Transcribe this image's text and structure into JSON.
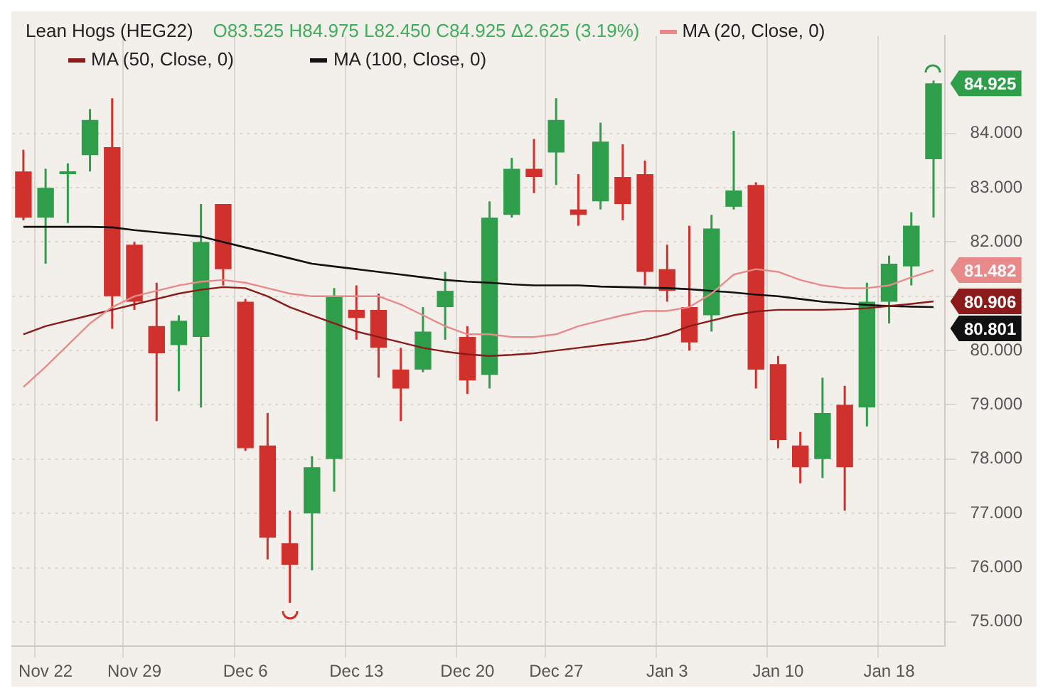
{
  "chart_data": {
    "type": "candlestick",
    "title": "Lean Hogs (HEG22)",
    "subtitle": "O83.525 H84.975 L82.450 C84.925 Δ2.625 (3.19%)",
    "categories": [
      null,
      "Nov 22",
      null,
      null,
      null,
      "Nov 29",
      null,
      null,
      null,
      null,
      "Dec 6",
      null,
      null,
      null,
      null,
      "Dec 13",
      null,
      null,
      null,
      null,
      "Dec 20",
      null,
      null,
      null,
      "Dec 27",
      null,
      null,
      null,
      null,
      "Jan 3",
      null,
      null,
      null,
      null,
      "Jan 10",
      null,
      null,
      null,
      null,
      "Jan 18",
      null,
      null
    ],
    "ohlc": [
      [
        83.3,
        83.7,
        82.4,
        82.45
      ],
      [
        82.45,
        83.35,
        81.6,
        83.0
      ],
      [
        83.25,
        83.45,
        82.35,
        83.3
      ],
      [
        83.6,
        84.45,
        83.3,
        84.25
      ],
      [
        83.75,
        84.65,
        80.4,
        81.0
      ],
      [
        81.95,
        82.0,
        80.75,
        80.9
      ],
      [
        80.45,
        81.25,
        78.7,
        79.95
      ],
      [
        80.1,
        80.65,
        79.25,
        80.55
      ],
      [
        80.25,
        82.7,
        78.95,
        82.0
      ],
      [
        82.7,
        82.7,
        81.2,
        81.5
      ],
      [
        80.9,
        80.95,
        78.15,
        78.2
      ],
      [
        78.25,
        78.85,
        76.15,
        76.55
      ],
      [
        76.45,
        77.05,
        75.35,
        76.05
      ],
      [
        77.0,
        78.05,
        75.95,
        77.85
      ],
      [
        78.0,
        81.15,
        77.4,
        81.0
      ],
      [
        80.75,
        81.2,
        80.2,
        80.6
      ],
      [
        80.75,
        81.05,
        79.5,
        80.05
      ],
      [
        79.65,
        80.05,
        78.7,
        79.3
      ],
      [
        79.65,
        80.8,
        79.6,
        80.35
      ],
      [
        80.8,
        81.45,
        80.2,
        81.1
      ],
      [
        80.25,
        80.45,
        79.2,
        79.45
      ],
      [
        79.55,
        82.75,
        79.3,
        82.45
      ],
      [
        82.5,
        83.55,
        82.45,
        83.35
      ],
      [
        83.35,
        83.9,
        82.9,
        83.2
      ],
      [
        83.65,
        84.65,
        83.05,
        84.25
      ],
      [
        82.6,
        83.25,
        82.3,
        82.5
      ],
      [
        82.75,
        84.2,
        82.6,
        83.85
      ],
      [
        83.2,
        83.8,
        82.4,
        82.7
      ],
      [
        83.25,
        83.5,
        81.2,
        81.45
      ],
      [
        81.5,
        81.95,
        80.9,
        81.1
      ],
      [
        80.8,
        82.3,
        80.0,
        80.15
      ],
      [
        80.65,
        82.5,
        80.35,
        82.25
      ],
      [
        82.65,
        84.05,
        82.6,
        82.95
      ],
      [
        83.05,
        83.1,
        79.3,
        79.65
      ],
      [
        79.75,
        79.9,
        78.2,
        78.35
      ],
      [
        78.25,
        78.5,
        77.55,
        77.85
      ],
      [
        78.0,
        79.5,
        77.65,
        78.85
      ],
      [
        79.0,
        79.35,
        77.05,
        77.85
      ],
      [
        78.95,
        81.25,
        78.6,
        80.9
      ],
      [
        80.9,
        81.75,
        80.5,
        81.6
      ],
      [
        81.55,
        82.55,
        81.2,
        82.3
      ],
      [
        83.525,
        84.975,
        82.45,
        84.925
      ]
    ],
    "colors": [
      "#d0312d",
      "#2e9e4a",
      "#2e9e4a",
      "#2e9e4a",
      "#d0312d",
      "#d0312d",
      "#d0312d",
      "#2e9e4a",
      "#2e9e4a",
      "#d0312d",
      "#d0312d",
      "#d0312d",
      "#d0312d",
      "#2e9e4a",
      "#2e9e4a",
      "#d0312d",
      "#d0312d",
      "#d0312d",
      "#2e9e4a",
      "#2e9e4a",
      "#d0312d",
      "#2e9e4a",
      "#2e9e4a",
      "#d0312d",
      "#2e9e4a",
      "#d0312d",
      "#2e9e4a",
      "#d0312d",
      "#d0312d",
      "#d0312d",
      "#d0312d",
      "#2e9e4a",
      "#2e9e4a",
      "#d0312d",
      "#d0312d",
      "#d0312d",
      "#2e9e4a",
      "#d0312d",
      "#2e9e4a",
      "#2e9e4a",
      "#2e9e4a",
      "#2e9e4a"
    ],
    "series": [
      {
        "type": "line",
        "name": "MA (20, Close, 0)",
        "color": "#e88a8a",
        "values": [
          79.33,
          79.7,
          80.1,
          80.5,
          80.8,
          81.0,
          81.1,
          81.2,
          81.27,
          81.3,
          81.25,
          81.15,
          81.05,
          81.0,
          81.0,
          81.0,
          81.0,
          80.85,
          80.65,
          80.45,
          80.3,
          80.3,
          80.25,
          80.25,
          80.3,
          80.45,
          80.55,
          80.65,
          80.73,
          80.73,
          80.8,
          81.05,
          81.4,
          81.5,
          81.45,
          81.3,
          81.2,
          81.15,
          81.15,
          81.2,
          81.35,
          81.482
        ],
        "value_labels": [
          null,
          null,
          null,
          null,
          null,
          null,
          null,
          null,
          null,
          null,
          null,
          null,
          null,
          null,
          null,
          null,
          null,
          null,
          null,
          null,
          null,
          null,
          null,
          null,
          null,
          null,
          null,
          null,
          null,
          null,
          null,
          null,
          null,
          null,
          null,
          null,
          null,
          null,
          null,
          null,
          null,
          "81.482"
        ]
      },
      {
        "type": "line",
        "name": "MA (50, Close, 0)",
        "color": "#8b1a1a",
        "values": [
          80.3,
          80.45,
          80.55,
          80.65,
          80.75,
          80.85,
          80.95,
          81.05,
          81.12,
          81.17,
          81.15,
          81.0,
          80.8,
          80.65,
          80.5,
          80.35,
          80.25,
          80.15,
          80.05,
          79.98,
          79.93,
          79.9,
          79.92,
          79.95,
          80.0,
          80.05,
          80.1,
          80.15,
          80.2,
          80.3,
          80.45,
          80.55,
          80.65,
          80.72,
          80.75,
          80.75,
          80.75,
          80.76,
          80.78,
          80.82,
          80.86,
          80.906
        ],
        "value_labels": [
          null,
          null,
          null,
          null,
          null,
          null,
          null,
          null,
          null,
          null,
          null,
          null,
          null,
          null,
          null,
          null,
          null,
          null,
          null,
          null,
          null,
          null,
          null,
          null,
          null,
          null,
          null,
          null,
          null,
          null,
          null,
          null,
          null,
          null,
          null,
          null,
          null,
          null,
          null,
          null,
          null,
          "80.906"
        ]
      },
      {
        "type": "line",
        "name": "MA (100, Close, 0)",
        "color": "#111111",
        "values": [
          82.28,
          82.28,
          82.28,
          82.28,
          82.27,
          82.22,
          82.18,
          82.14,
          82.1,
          82.0,
          81.9,
          81.8,
          81.7,
          81.6,
          81.55,
          81.5,
          81.45,
          81.4,
          81.35,
          81.3,
          81.27,
          81.25,
          81.22,
          81.2,
          81.2,
          81.2,
          81.18,
          81.17,
          81.16,
          81.15,
          81.13,
          81.1,
          81.07,
          81.03,
          81.0,
          80.95,
          80.9,
          80.87,
          80.84,
          80.82,
          80.81,
          80.801
        ],
        "value_labels": [
          null,
          null,
          null,
          null,
          null,
          null,
          null,
          null,
          null,
          null,
          null,
          null,
          null,
          null,
          null,
          null,
          null,
          null,
          null,
          null,
          null,
          null,
          null,
          null,
          null,
          null,
          null,
          null,
          null,
          null,
          null,
          null,
          null,
          null,
          null,
          null,
          null,
          null,
          null,
          null,
          null,
          "80.801"
        ]
      }
    ],
    "annotations": [
      "84.925"
    ],
    "ylim": [
      74.55,
      85.8
    ],
    "yticks": [
      {
        "value": 75,
        "label": "75.000"
      },
      {
        "value": 76,
        "label": "76.000"
      },
      {
        "value": 77,
        "label": "77.000"
      },
      {
        "value": 78,
        "label": "78.000"
      },
      {
        "value": 79,
        "label": "79.000"
      },
      {
        "value": 80,
        "label": "80.000"
      },
      {
        "value": 81,
        "label": null
      },
      {
        "value": 82,
        "label": "82.000"
      },
      {
        "value": 83,
        "label": "83.000"
      },
      {
        "value": 84,
        "label": "84.000"
      }
    ],
    "grid": true,
    "legend": "top left"
  }
}
